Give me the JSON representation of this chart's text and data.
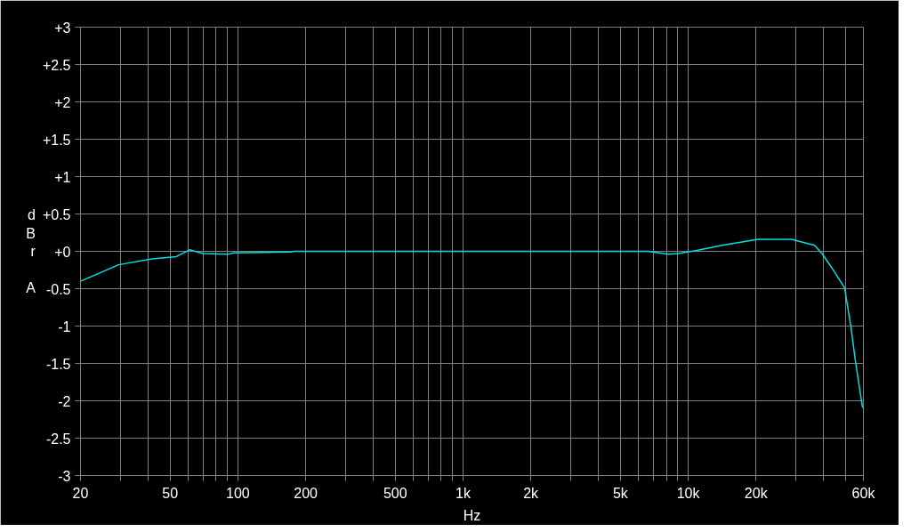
{
  "chart_data": {
    "type": "line",
    "xlabel": "Hz",
    "ylabel": "dBr A",
    "log": "x",
    "grid": true,
    "marker": "none",
    "line_style": "solid",
    "xlim": [
      20,
      60000
    ],
    "ylim": [
      -3,
      3
    ],
    "xticks": [
      {
        "value": 20,
        "label": "20"
      },
      {
        "value": 30,
        "label": null
      },
      {
        "value": 40,
        "label": null
      },
      50,
      {
        "value": 60,
        "label": null
      },
      {
        "value": 70,
        "label": null
      },
      {
        "value": 80,
        "label": null
      },
      {
        "value": 90,
        "label": null
      },
      100,
      200,
      {
        "value": 300,
        "label": null
      },
      {
        "value": 400,
        "label": null
      },
      500,
      {
        "value": 600,
        "label": null
      },
      {
        "value": 700,
        "label": null
      },
      {
        "value": 800,
        "label": null
      },
      {
        "value": 900,
        "label": null
      },
      {
        "value": 1000,
        "label": "1k"
      },
      {
        "value": 2000,
        "label": "2k"
      },
      {
        "value": 3000,
        "label": null
      },
      {
        "value": 4000,
        "label": null
      },
      {
        "value": 5000,
        "label": "5k"
      },
      {
        "value": 6000,
        "label": null
      },
      {
        "value": 7000,
        "label": null
      },
      {
        "value": 8000,
        "label": null
      },
      {
        "value": 9000,
        "label": null
      },
      {
        "value": 10000,
        "label": "10k"
      },
      {
        "value": 20000,
        "label": "20k"
      },
      {
        "value": 30000,
        "label": null
      },
      {
        "value": 40000,
        "label": null
      },
      {
        "value": 50000,
        "label": null
      },
      {
        "value": 60000,
        "label": "60k"
      }
    ],
    "yticks": [
      {
        "value": 3,
        "label": "+3"
      },
      {
        "value": 2.5,
        "label": "+2.5"
      },
      {
        "value": 2,
        "label": "+2"
      },
      {
        "value": 1.5,
        "label": "+1.5"
      },
      {
        "value": 1,
        "label": "+1"
      },
      {
        "value": 0.5,
        "label": "+0.5"
      },
      {
        "value": 0,
        "label": "+0"
      },
      -0.5,
      -1,
      -1.5,
      -2,
      -2.5,
      -3
    ],
    "series": [
      {
        "color": "#00e0e0",
        "x": [
          20,
          29.5,
          41.6,
          53.3,
          61,
          70,
          90,
          96,
          172,
          177,
          1000,
          6620,
          8180,
          9000,
          10800,
          14100,
          20400,
          28700,
          36400,
          39300,
          44500,
          49500,
          52800,
          55300,
          59300,
          60000
        ],
        "values": [
          -0.4,
          -0.18,
          -0.1,
          -0.07,
          0.02,
          -0.03,
          -0.04,
          -0.02,
          -0.01,
          0,
          0,
          0,
          -0.04,
          -0.03,
          0.01,
          0.08,
          0.16,
          0.16,
          0.08,
          -0.03,
          -0.27,
          -0.49,
          -1.01,
          -1.47,
          -2.07,
          -2.1
        ]
      }
    ]
  }
}
